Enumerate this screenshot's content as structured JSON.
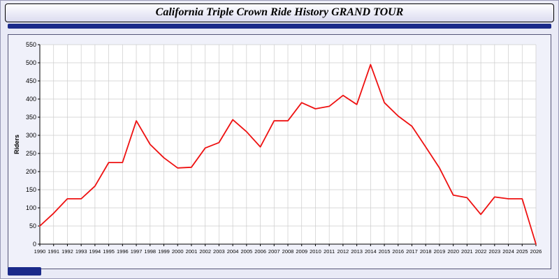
{
  "header": {
    "title": "California Triple Crown Ride History GRAND TOUR"
  },
  "colors": {
    "line": "#ee1111",
    "grid": "#cccccc",
    "axis": "#000000",
    "plot_bg": "#ffffff",
    "panel_bg": "#f0f1fa",
    "accent": "#1b2a8a"
  },
  "chart_data": {
    "type": "line",
    "title": "California Triple Crown Ride History GRAND TOUR",
    "xlabel": "",
    "ylabel": "Riders",
    "ylim": [
      0,
      550
    ],
    "ytick_step": 50,
    "grid": true,
    "legend": "none",
    "categories": [
      "1990",
      "1991",
      "1992",
      "1993",
      "1994",
      "1995",
      "1996",
      "1997",
      "1998",
      "1999",
      "2000",
      "2001",
      "2002",
      "2003",
      "2004",
      "2005",
      "2006",
      "2007",
      "2008",
      "2009",
      "2010",
      "2011",
      "2012",
      "2013",
      "2014",
      "2015",
      "2016",
      "2017",
      "2018",
      "2019",
      "2020",
      "2021",
      "2022",
      "2023",
      "2024",
      "2025",
      "2026"
    ],
    "values": [
      50,
      85,
      125,
      125,
      160,
      225,
      225,
      340,
      275,
      238,
      210,
      212,
      265,
      280,
      343,
      310,
      268,
      340,
      340,
      390,
      373,
      380,
      410,
      385,
      495,
      390,
      353,
      325,
      268,
      210,
      135,
      128,
      82,
      130,
      125,
      125,
      0
    ]
  }
}
